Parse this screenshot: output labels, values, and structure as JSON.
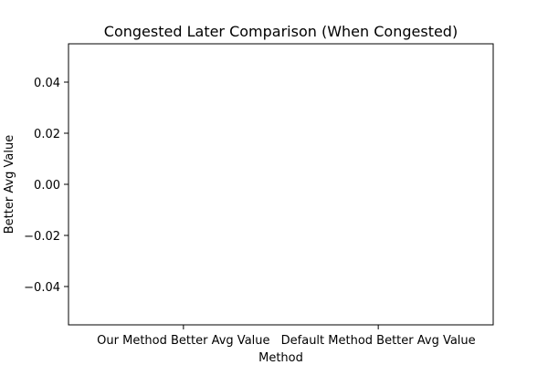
{
  "chart_data": {
    "type": "bar",
    "title": "Congested Later Comparison (When Congested)",
    "xlabel": "Method",
    "ylabel": "Better Avg Value",
    "categories": [
      "Our Method Better Avg Value",
      "Default Method Better Avg Value"
    ],
    "values": [
      0,
      0
    ],
    "ylim": [
      -0.055,
      0.055
    ],
    "yticks": [
      -0.04,
      -0.02,
      0.0,
      0.02,
      0.04
    ],
    "ytick_labels": [
      "−0.04",
      "−0.02",
      "0.00",
      "0.02",
      "0.04"
    ],
    "bar_color": "#1f77b4",
    "grid": false,
    "legend": "none"
  }
}
